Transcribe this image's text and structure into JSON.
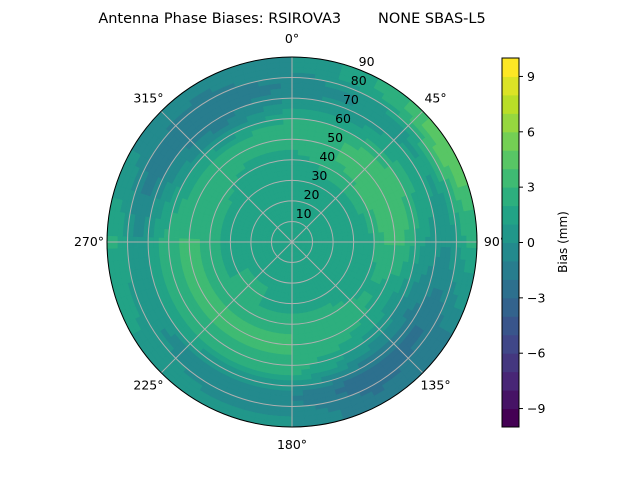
{
  "chart_data": {
    "type": "heatmap",
    "subtype": "polar-contour",
    "title": "Antenna Phase Biases: RSIROVA3        NONE SBAS-L5",
    "theta_zero": "top",
    "theta_direction": "clockwise",
    "theta_tick_labels": [
      "0°",
      "45°",
      "90°",
      "135°",
      "180°",
      "225°",
      "270°",
      "315°"
    ],
    "theta_ticks": [
      0,
      45,
      90,
      135,
      180,
      225,
      270,
      315
    ],
    "r_ticks": [
      10,
      20,
      30,
      40,
      50,
      60,
      70,
      80,
      90
    ],
    "r_tick_labels": [
      "10",
      "20",
      "30",
      "40",
      "50",
      "60",
      "70",
      "80",
      "90"
    ],
    "rlim": [
      0,
      90
    ],
    "grid": true,
    "azimuth_deg": [
      0,
      30,
      60,
      90,
      120,
      150,
      180,
      210,
      240,
      270,
      300,
      330
    ],
    "zenith_deg": [
      5,
      15,
      25,
      35,
      45,
      55,
      65,
      75,
      85
    ],
    "bias_mm": [
      [
        1,
        1,
        1,
        1,
        2,
        3,
        1,
        -1,
        0
      ],
      [
        1,
        1,
        1,
        2,
        3,
        3,
        1,
        0,
        2
      ],
      [
        1,
        1,
        1,
        2,
        4,
        4,
        2,
        1,
        5
      ],
      [
        1,
        1,
        1,
        1,
        3,
        3,
        1,
        0,
        2
      ],
      [
        1,
        1,
        1,
        1,
        2,
        1,
        -1,
        -2,
        -1
      ],
      [
        1,
        1,
        1,
        2,
        3,
        2,
        0,
        -3,
        -2
      ],
      [
        1,
        1,
        1,
        2,
        3,
        3,
        2,
        -1,
        0
      ],
      [
        1,
        1,
        2,
        2,
        3,
        3,
        2,
        -1,
        0
      ],
      [
        1,
        1,
        2,
        2,
        3,
        3,
        2,
        0,
        1
      ],
      [
        1,
        1,
        1,
        2,
        3,
        3,
        2,
        0,
        2
      ],
      [
        1,
        1,
        1,
        2,
        3,
        2,
        0,
        -2,
        0
      ],
      [
        1,
        1,
        1,
        1,
        2,
        2,
        -1,
        -2,
        -1
      ]
    ],
    "colorbar": {
      "label": "Bias (mm)",
      "colormap": "viridis",
      "range": [
        -10,
        10
      ],
      "level_step": 1,
      "ticks": [
        -9,
        -6,
        -3,
        0,
        3,
        6,
        9
      ],
      "tick_labels": [
        "−9",
        "−6",
        "−3",
        "0",
        "3",
        "6",
        "9"
      ]
    }
  }
}
